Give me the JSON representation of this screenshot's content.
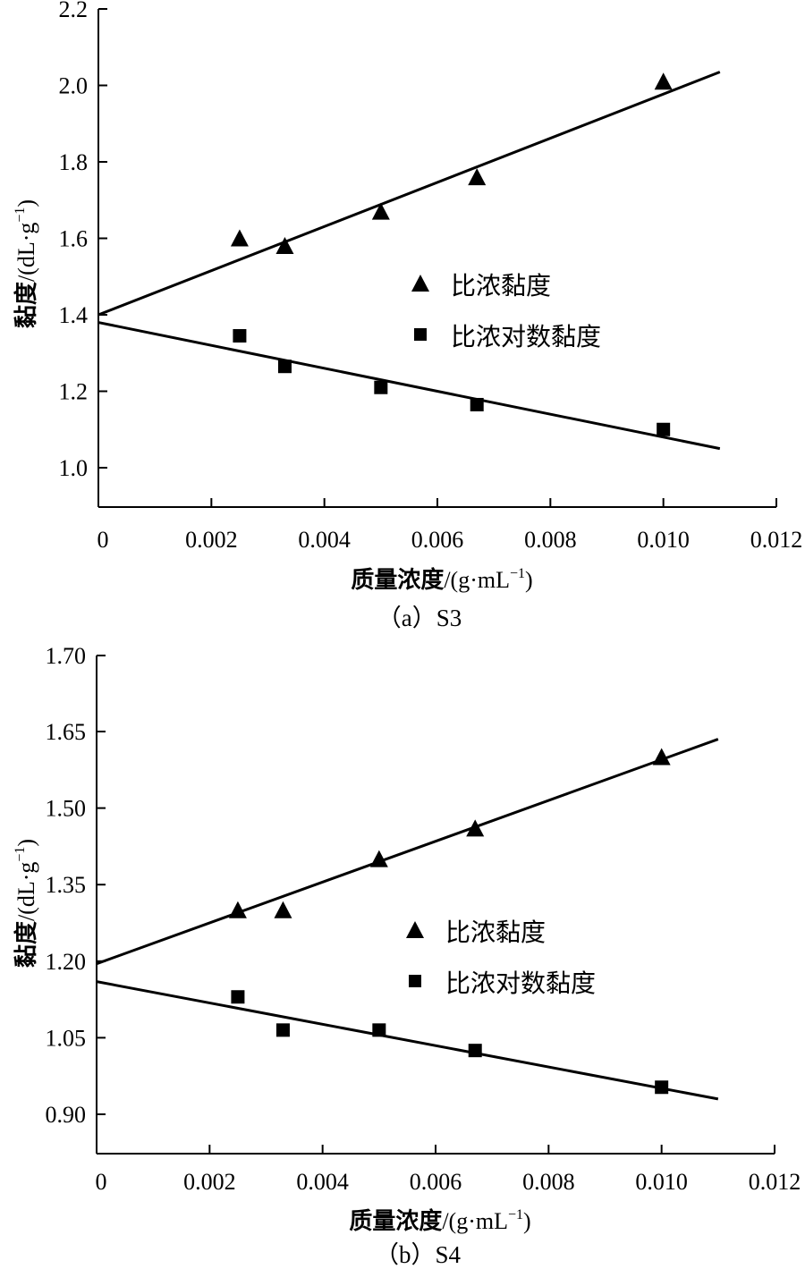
{
  "chart_data": [
    {
      "type": "scatter",
      "caption": "（a）S3",
      "xlabel_main": "质量浓度",
      "xlabel_unit": "/(g·mL",
      "xlabel_exp": "−1",
      "xlabel_close": ")",
      "ylabel_main": "黏度",
      "ylabel_unit": "/(dL·g",
      "ylabel_exp": "−1",
      "ylabel_close": ")",
      "xlim": [
        0,
        0.012
      ],
      "ylim": [
        0.9,
        2.2
      ],
      "xticks": [
        0,
        0.002,
        0.004,
        0.006,
        0.008,
        0.01,
        0.012
      ],
      "xtick_labels": [
        "0",
        "0.002",
        "0.004",
        "0.006",
        "0.008",
        "0.010",
        "0.012"
      ],
      "yticks": [
        1.0,
        1.2,
        1.4,
        1.6,
        1.8,
        2.0,
        2.2
      ],
      "ytick_labels": [
        "1.0",
        "1.2",
        "1.4",
        "1.6",
        "1.8",
        "2.0",
        "2.2"
      ],
      "legend_position": "center-right",
      "series": [
        {
          "name": "比浓黏度",
          "marker": "triangle",
          "x": [
            0.0025,
            0.0033,
            0.005,
            0.0067,
            0.01
          ],
          "y": [
            1.6,
            1.58,
            1.67,
            1.76,
            2.01
          ],
          "fit": {
            "x": [
              0,
              0.011
            ],
            "y": [
              1.4,
              2.035
            ]
          }
        },
        {
          "name": "比浓对数黏度",
          "marker": "square",
          "x": [
            0.0025,
            0.0033,
            0.005,
            0.0067,
            0.01
          ],
          "y": [
            1.345,
            1.265,
            1.21,
            1.165,
            1.1
          ],
          "fit": {
            "x": [
              0,
              0.011
            ],
            "y": [
              1.38,
              1.05
            ]
          }
        }
      ]
    },
    {
      "type": "scatter",
      "caption": "（b）S4",
      "xlabel_main": "质量浓度",
      "xlabel_unit": "/(g·mL",
      "xlabel_exp": "−1",
      "xlabel_close": ")",
      "ylabel_main": "黏度",
      "ylabel_unit": "/(dL·g",
      "ylabel_exp": "−1",
      "ylabel_close": ")",
      "xlim": [
        0,
        0.012
      ],
      "ylim": [
        0.78,
        1.7
      ],
      "xticks": [
        0,
        0.002,
        0.004,
        0.006,
        0.008,
        0.01,
        0.012
      ],
      "xtick_labels": [
        "0",
        "0.002",
        "0.004",
        "0.006",
        "0.008",
        "0.010",
        "0.012"
      ],
      "yticks": [
        0.9,
        1.05,
        1.2,
        1.35,
        1.5,
        1.65,
        1.7
      ],
      "ytick_labels": [
        "0.90",
        "1.05",
        "1.20",
        "1.35",
        "1.50",
        "1.65",
        "1.70"
      ],
      "legend_position": "center-right",
      "series": [
        {
          "name": "比浓黏度",
          "marker": "triangle",
          "x": [
            0.0025,
            0.0033,
            0.005,
            0.0067,
            0.01
          ],
          "y": [
            1.3,
            1.3,
            1.4,
            1.46,
            1.6
          ],
          "fit": {
            "x": [
              0,
              0.011
            ],
            "y": [
              1.195,
              1.635
            ]
          }
        },
        {
          "name": "比浓对数黏度",
          "marker": "square",
          "x": [
            0.0025,
            0.0033,
            0.005,
            0.0067,
            0.01
          ],
          "y": [
            1.13,
            1.065,
            1.065,
            1.025,
            0.953
          ],
          "fit": {
            "x": [
              0,
              0.011
            ],
            "y": [
              1.16,
              0.93
            ]
          }
        }
      ]
    }
  ]
}
